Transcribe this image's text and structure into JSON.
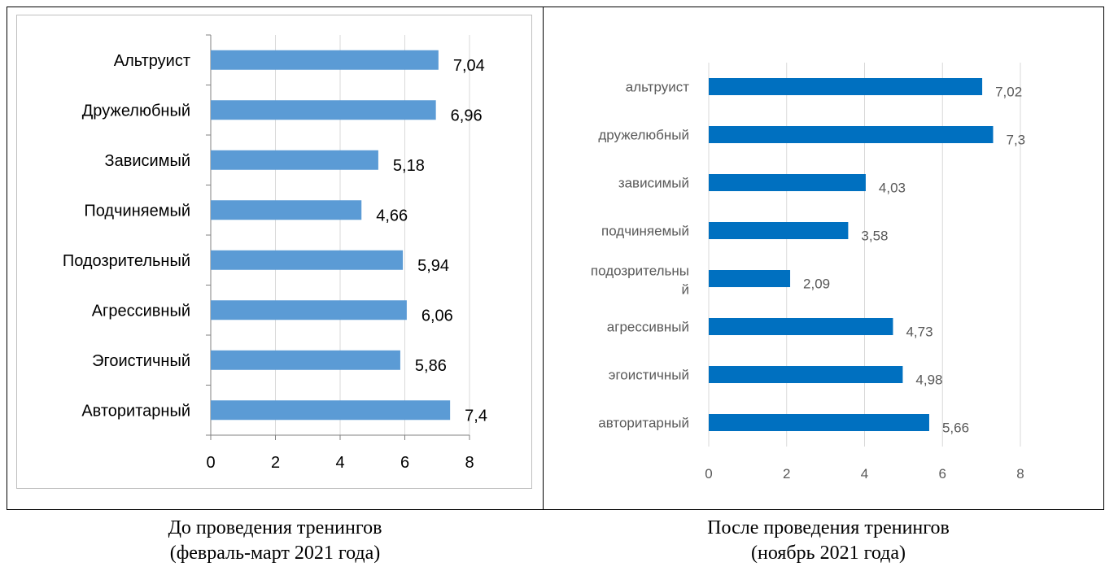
{
  "chart_data": [
    {
      "type": "bar",
      "orientation": "horizontal",
      "categories": [
        "Альтруист",
        "Дружелюбный",
        "Зависимый",
        "Подчиняемый",
        "Подозрительный",
        "Агрессивный",
        "Эгоистичный",
        "Авторитарный"
      ],
      "values": [
        7.04,
        6.96,
        5.18,
        4.66,
        5.94,
        6.06,
        5.86,
        7.4
      ],
      "value_labels": [
        "7,04",
        "6,96",
        "5,18",
        "4,66",
        "5,94",
        "6,06",
        "5,86",
        "7,4"
      ],
      "xticks": [
        "0",
        "2",
        "4",
        "6",
        "8"
      ],
      "xlim": [
        0,
        8
      ],
      "grid": true,
      "bar_color": "#5b9bd5",
      "axis_color": "#808080",
      "text_color": "#000000"
    },
    {
      "type": "bar",
      "orientation": "horizontal",
      "categories": [
        "альтруист",
        "дружелюбный",
        "зависимый",
        "подчиняемый",
        [
          "подозрительны",
          "й"
        ],
        "агрессивный",
        "эгоистичный",
        "авторитарный"
      ],
      "values": [
        7.02,
        7.3,
        4.03,
        3.58,
        2.09,
        4.73,
        4.98,
        5.66
      ],
      "value_labels": [
        "7,02",
        "7,3",
        "4,03",
        "3,58",
        "2,09",
        "4,73",
        "4,98",
        "5,66"
      ],
      "xticks": [
        "0",
        "2",
        "4",
        "6",
        "8"
      ],
      "xlim": [
        0,
        8
      ],
      "grid": true,
      "bar_color": "#0070c0",
      "grid_color": "#d9d9d9",
      "text_color": "#595959"
    }
  ],
  "captions": {
    "left": [
      "До проведения тренингов",
      "(февраль-март 2021 года)"
    ],
    "right": [
      "После проведения тренингов",
      "(ноябрь 2021 года)"
    ]
  }
}
